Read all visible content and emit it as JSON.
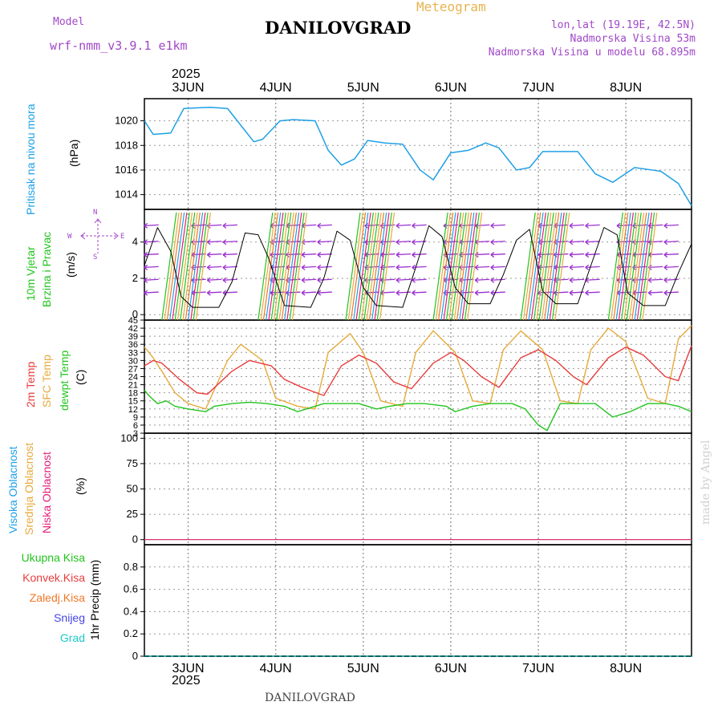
{
  "header": {
    "model_label": "Model",
    "model_name": "wrf-nmm_v3.9.1 e1km",
    "station": "DANILOVGRAD",
    "meteogram": "Meteogram",
    "lonlat": "lon,lat (19.19E, 42.5N)",
    "elevation": "Nadmorska Visina 53m",
    "model_elevation": "Nadmorska Visina u modelu 68.895m",
    "year_top": "2025",
    "year_bottom": "2025",
    "footer_station": "DANILOVGRAD",
    "watermark": "made by Angel"
  },
  "colors": {
    "pressure": "#1ea0e6",
    "temp2m": "#e83c3c",
    "sfc": "#e6aa3c",
    "dewpt": "#22c41e",
    "wind_purple": "#9b30d0",
    "wind_green": "#22c41e",
    "cloud_high": "#1ea0e6",
    "cloud_mid": "#e6aa3c",
    "cloud_low": "#e61e78",
    "precip_total": "#22c41e",
    "precip_conv": "#e83c3c",
    "precip_frz": "#f07828",
    "snow": "#4646e6",
    "hail": "#1ec8c8"
  },
  "labels": {
    "pressure": "Pritisak na nivou mora",
    "pressure_unit": "(hPa)",
    "wind1": "10m Vjetar",
    "wind2": "Brzina i Pravac",
    "wind_unit": "(m/s)",
    "temp_2m": "2m Temp",
    "temp_sfc": "SFC Temp",
    "temp_dew": "dewpt Temp",
    "temp_unit": "(C)",
    "cloud_high": "Visoka Oblacnost",
    "cloud_mid": "Srednja Oblacnost",
    "cloud_low": "Niska Oblacnost",
    "cloud_unit": "(%)",
    "precip_total": "Ukupna Kisa",
    "precip_conv": "Konvek.Kisa",
    "precip_frz": "Zaledj.Kisa",
    "precip_snow": "Snijeg",
    "precip_hail": "Grad",
    "precip_unit": "1hr Precip (mm)",
    "compass_n": "N",
    "compass_w": "W",
    "compass_e": "E",
    "compass_s": "S"
  },
  "chart_data": [
    {
      "type": "line",
      "panel": "pressure",
      "x_ticks": [
        "3JUN",
        "4JUN",
        "5JUN",
        "6JUN",
        "7JUN",
        "8JUN"
      ],
      "xlabel": "",
      "ylabel": "(hPa)",
      "y_ticks": [
        1014,
        1016,
        1018,
        1020
      ],
      "ylim": [
        1012.8,
        1021.8
      ],
      "series": [
        {
          "name": "Pritisak na nivou mora",
          "x": [
            0,
            0.1,
            0.3,
            0.45,
            0.75,
            0.95,
            1.15,
            1.25,
            1.35,
            1.55,
            1.7,
            1.95,
            2.1,
            2.25,
            2.4,
            2.55,
            2.75,
            2.95,
            3.15,
            3.3,
            3.5,
            3.7,
            3.9,
            4.05,
            4.25,
            4.4,
            4.55,
            4.75,
            4.95,
            5.15,
            5.35,
            5.6,
            5.8,
            5.9,
            6.1,
            6.25
          ],
          "values": [
            1020.0,
            1018.9,
            1019.0,
            1021.0,
            1021.1,
            1021.0,
            1019.2,
            1018.3,
            1018.5,
            1020.0,
            1020.1,
            1020.0,
            1017.6,
            1016.4,
            1016.9,
            1018.4,
            1018.2,
            1018.1,
            1016.0,
            1015.2,
            1017.4,
            1017.6,
            1018.2,
            1017.8,
            1016.0,
            1016.2,
            1017.5,
            1017.5,
            1017.5,
            1015.7,
            1015.0,
            1016.2,
            1016.0,
            1015.9,
            1014.9,
            1013.1
          ]
        }
      ]
    },
    {
      "type": "line",
      "panel": "wind",
      "xlabel": "",
      "ylabel": "(m/s)",
      "y_ticks": [
        0,
        2,
        4
      ],
      "ylim": [
        -0.3,
        5.8
      ],
      "series": [
        {
          "name": "10m Vjetar",
          "x": [
            0,
            0.15,
            0.3,
            0.42,
            0.55,
            0.85,
            1.0,
            1.15,
            1.3,
            1.42,
            1.6,
            1.9,
            2.05,
            2.2,
            2.35,
            2.5,
            2.65,
            2.95,
            3.1,
            3.25,
            3.4,
            3.55,
            3.7,
            3.95,
            4.1,
            4.25,
            4.4,
            4.55,
            4.7,
            4.95,
            5.1,
            5.25,
            5.4,
            5.52,
            5.7,
            5.95,
            6.1,
            6.25
          ],
          "values": [
            2.7,
            4.8,
            3.5,
            1.0,
            0.4,
            0.4,
            1.8,
            4.5,
            4.4,
            3.1,
            0.5,
            0.4,
            2.0,
            4.6,
            4.1,
            1.5,
            0.5,
            0.4,
            2.6,
            4.9,
            4.3,
            1.5,
            0.6,
            0.6,
            2.2,
            4.1,
            4.7,
            1.3,
            0.6,
            0.6,
            2.7,
            4.8,
            4.4,
            1.2,
            0.5,
            0.5,
            2.3,
            3.9
          ]
        }
      ]
    },
    {
      "type": "line",
      "panel": "temperature",
      "xlabel": "",
      "ylabel": "(C)",
      "y_ticks": [
        3,
        6,
        9,
        12,
        15,
        18,
        21,
        24,
        27,
        30,
        33,
        36,
        39,
        42,
        45
      ],
      "ylim": [
        3,
        45
      ],
      "series": [
        {
          "name": "2m Temp",
          "x": [
            0,
            0.1,
            0.2,
            0.4,
            0.6,
            0.72,
            1.0,
            1.2,
            1.45,
            1.6,
            1.8,
            2.05,
            2.25,
            2.45,
            2.65,
            2.85,
            3.05,
            3.3,
            3.5,
            3.65,
            3.85,
            4.05,
            4.3,
            4.5,
            4.7,
            4.9,
            5.05,
            5.3,
            5.5,
            5.7,
            5.95,
            6.1,
            6.25
          ],
          "values": [
            28,
            30,
            29,
            23,
            18,
            17.5,
            26,
            30,
            28,
            23,
            20,
            17,
            28,
            32,
            29,
            22,
            19.5,
            29,
            33,
            30,
            24,
            20,
            31,
            34,
            30,
            24,
            21,
            31,
            35,
            32,
            24,
            22.5,
            35.5
          ]
        },
        {
          "name": "SFC Temp",
          "x": [
            0,
            0.1,
            0.2,
            0.35,
            0.5,
            0.7,
            0.95,
            1.1,
            1.35,
            1.5,
            1.75,
            1.95,
            2.1,
            2.35,
            2.5,
            2.7,
            2.95,
            3.1,
            3.3,
            3.55,
            3.75,
            3.95,
            4.1,
            4.3,
            4.55,
            4.75,
            4.95,
            5.1,
            5.3,
            5.5,
            5.75,
            5.95,
            6.1,
            6.25
          ],
          "values": [
            35,
            31,
            26,
            18,
            14,
            12,
            30,
            36,
            30,
            16,
            13,
            12,
            33,
            40,
            33,
            15,
            13,
            33,
            41,
            33,
            15,
            14,
            34,
            41,
            34,
            15,
            14,
            34,
            42,
            37,
            16,
            14,
            38,
            43
          ]
        },
        {
          "name": "dewpt Temp",
          "x": [
            0,
            0.05,
            0.15,
            0.25,
            0.35,
            0.5,
            0.7,
            0.8,
            1.0,
            1.2,
            1.4,
            1.6,
            1.75,
            1.85,
            2.05,
            2.25,
            2.45,
            2.65,
            2.8,
            3.0,
            3.2,
            3.45,
            3.55,
            3.75,
            3.95,
            4.2,
            4.35,
            4.5,
            4.6,
            4.75,
            4.95,
            5.15,
            5.35,
            5.55,
            5.75,
            5.95,
            6.1,
            6.25
          ],
          "values": [
            19,
            17,
            14,
            15,
            13,
            12,
            11,
            13,
            14,
            14.5,
            14,
            13,
            11,
            12,
            14,
            14,
            14,
            12,
            13,
            14,
            14,
            13,
            11,
            13,
            14,
            14,
            12,
            6,
            4,
            14,
            14,
            14,
            9,
            11,
            14,
            14,
            13,
            11
          ]
        }
      ]
    },
    {
      "type": "line",
      "panel": "clouds",
      "xlabel": "",
      "ylabel": "(%)",
      "y_ticks": [
        0,
        25,
        50,
        75,
        100
      ],
      "ylim": [
        -5,
        105
      ],
      "series": [
        {
          "name": "Visoka Oblacnost",
          "x": [
            0,
            6.25
          ],
          "values": [
            0,
            0
          ]
        },
        {
          "name": "Srednja Oblacnost",
          "x": [
            0,
            6.25
          ],
          "values": [
            0,
            0
          ]
        },
        {
          "name": "Niska Oblacnost",
          "x": [
            0,
            6.25
          ],
          "values": [
            0,
            0
          ]
        }
      ]
    },
    {
      "type": "line",
      "panel": "precipitation",
      "x_ticks": [
        "3JUN",
        "4JUN",
        "5JUN",
        "6JUN",
        "7JUN",
        "8JUN"
      ],
      "xlabel": "",
      "ylabel": "1hr Precip (mm)",
      "y_ticks": [
        0,
        0.2,
        0.4,
        0.6,
        0.8
      ],
      "ylim": [
        0,
        1.0
      ],
      "series": [
        {
          "name": "Ukupna Kisa",
          "x": [
            0,
            6.25
          ],
          "values": [
            0,
            0
          ]
        },
        {
          "name": "Konvek.Kisa",
          "x": [
            0,
            6.25
          ],
          "values": [
            0,
            0
          ]
        },
        {
          "name": "Zaledj.Kisa",
          "x": [
            0,
            6.25
          ],
          "values": [
            0,
            0
          ]
        },
        {
          "name": "Snijeg",
          "x": [
            0,
            6.25
          ],
          "values": [
            0,
            0
          ]
        },
        {
          "name": "Grad",
          "x": [
            0,
            6.25
          ],
          "values": [
            0,
            0
          ]
        }
      ]
    }
  ]
}
